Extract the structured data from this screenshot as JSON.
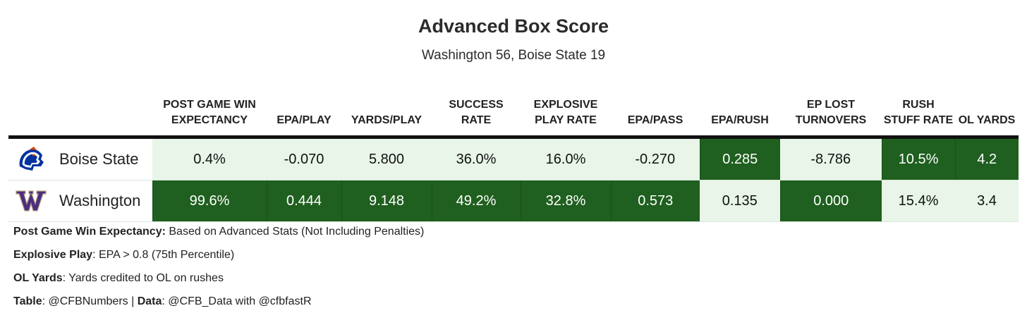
{
  "title": "Advanced Box Score",
  "subtitle": "Washington 56, Boise State 19",
  "chart_data": {
    "type": "table",
    "columns": [
      {
        "key": "team",
        "label": ""
      },
      {
        "key": "win_exp",
        "label": "POST GAME WIN EXPECTANCY"
      },
      {
        "key": "epa_play",
        "label": "EPA/PLAY"
      },
      {
        "key": "yards_play",
        "label": "YARDS/PLAY"
      },
      {
        "key": "success_rate",
        "label": "SUCCESS RATE"
      },
      {
        "key": "explosive_rate",
        "label": "EXPLOSIVE PLAY RATE"
      },
      {
        "key": "epa_pass",
        "label": "EPA/PASS"
      },
      {
        "key": "epa_rush",
        "label": "EPA/RUSH"
      },
      {
        "key": "ep_lost_to",
        "label": "EP LOST TURNOVERS"
      },
      {
        "key": "rush_stuff",
        "label": "RUSH STUFF RATE"
      },
      {
        "key": "ol_yards",
        "label": "OL YARDS"
      }
    ],
    "rows": [
      {
        "team": "Boise State",
        "logo": "boise-state-bronco-logo",
        "cells": [
          {
            "value": "0.4%",
            "highlight": "light"
          },
          {
            "value": "-0.070",
            "highlight": "light"
          },
          {
            "value": "5.800",
            "highlight": "light"
          },
          {
            "value": "36.0%",
            "highlight": "light"
          },
          {
            "value": "16.0%",
            "highlight": "light"
          },
          {
            "value": "-0.270",
            "highlight": "light"
          },
          {
            "value": "0.285",
            "highlight": "dark"
          },
          {
            "value": "-8.786",
            "highlight": "light"
          },
          {
            "value": "10.5%",
            "highlight": "dark"
          },
          {
            "value": "4.2",
            "highlight": "dark"
          }
        ]
      },
      {
        "team": "Washington",
        "logo": "washington-w-logo",
        "cells": [
          {
            "value": "99.6%",
            "highlight": "dark"
          },
          {
            "value": "0.444",
            "highlight": "dark"
          },
          {
            "value": "9.148",
            "highlight": "dark"
          },
          {
            "value": "49.2%",
            "highlight": "dark"
          },
          {
            "value": "32.8%",
            "highlight": "dark"
          },
          {
            "value": "0.573",
            "highlight": "dark"
          },
          {
            "value": "0.135",
            "highlight": "light"
          },
          {
            "value": "0.000",
            "highlight": "dark"
          },
          {
            "value": "15.4%",
            "highlight": "light"
          },
          {
            "value": "3.4",
            "highlight": "light"
          }
        ]
      }
    ],
    "colors": {
      "dark": "#1f5f1f",
      "light": "#e8f5e8"
    }
  },
  "notes": [
    {
      "label": "Post Game Win Expectancy:",
      "text": " Based on Advanced Stats (Not Including Penalties)"
    },
    {
      "label": "Explosive Play",
      "text": ": EPA > 0.8 (75th Percentile)"
    },
    {
      "label": "OL Yards",
      "text": ": Yards credited to OL on rushes"
    }
  ],
  "credit": {
    "table_label": "Table",
    "table_text": ": @CFBNumbers | ",
    "data_label": "Data",
    "data_text": ": @CFB_Data with @cfbfastR"
  }
}
